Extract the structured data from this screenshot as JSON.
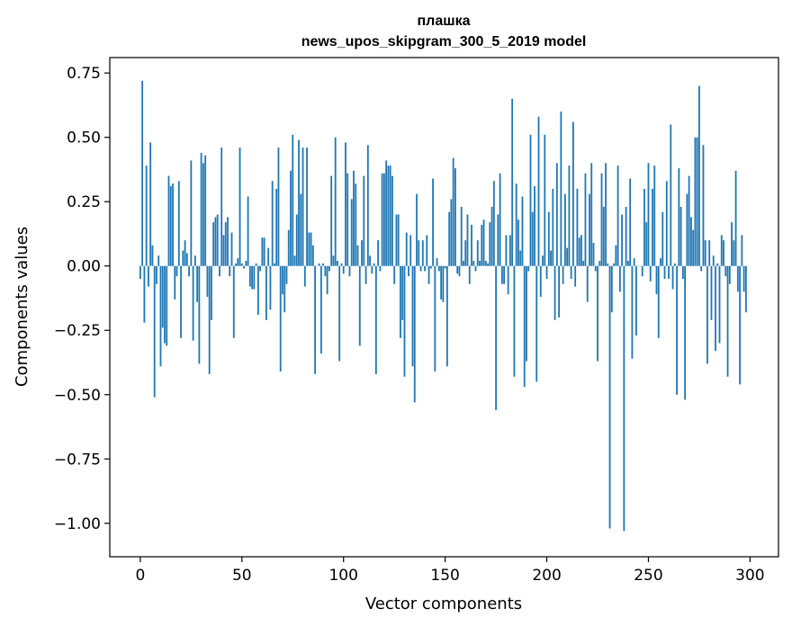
{
  "chart_data": {
    "type": "bar",
    "title": "плашка",
    "subtitle": "news_upos_skipgram_300_5_2019 model",
    "xlabel": "Vector components",
    "ylabel": "Components values",
    "xlim": [
      -15,
      314
    ],
    "ylim": [
      -1.13,
      0.81
    ],
    "xticks": [
      0,
      50,
      100,
      150,
      200,
      250,
      300
    ],
    "xtick_labels": [
      "0",
      "50",
      "100",
      "150",
      "200",
      "250",
      "300"
    ],
    "yticks": [
      0.75,
      0.5,
      0.25,
      0.0,
      -0.25,
      -0.5,
      -0.75,
      -1.0
    ],
    "ytick_labels": [
      "0.75",
      "0.50",
      "0.25",
      "0.00",
      "−0.25",
      "−0.50",
      "−0.75",
      "−1.00"
    ],
    "bar_color": "#1f77b4",
    "grid": false,
    "legend": "none",
    "values": [
      -0.05,
      0.72,
      -0.22,
      0.39,
      -0.08,
      0.48,
      0.08,
      -0.51,
      -0.07,
      0.04,
      -0.39,
      -0.24,
      -0.3,
      -0.31,
      0.35,
      0.31,
      0.32,
      -0.13,
      -0.04,
      0.33,
      -0.28,
      0.06,
      0.1,
      0.05,
      -0.04,
      0.41,
      -0.29,
      0.04,
      -0.14,
      -0.38,
      0.44,
      0.4,
      0.43,
      -0.12,
      -0.42,
      -0.21,
      0.17,
      0.19,
      0.2,
      -0.04,
      0.46,
      0.12,
      0.17,
      0.19,
      -0.04,
      0.13,
      -0.28,
      0.01,
      0.03,
      0.46,
      0.01,
      -0.01,
      0.02,
      0.27,
      -0.08,
      -0.09,
      -0.09,
      0.01,
      -0.19,
      -0.02,
      0.11,
      0.11,
      -0.21,
      0.07,
      -0.17,
      0.33,
      0.01,
      0.3,
      0.46,
      -0.41,
      -0.11,
      -0.18,
      -0.07,
      0.14,
      0.37,
      0.51,
      0.04,
      0.2,
      0.49,
      0.28,
      0.46,
      -0.08,
      0.46,
      0.13,
      0.13,
      0.08,
      -0.42,
      0.0,
      0.01,
      -0.34,
      0.01,
      -0.04,
      -0.11,
      -0.02,
      0.35,
      0.04,
      0.5,
      0.02,
      -0.37,
      0.01,
      -0.03,
      0.48,
      0.36,
      -0.04,
      0.26,
      0.37,
      0.32,
      0.08,
      -0.31,
      0.1,
      0.35,
      -0.07,
      0.47,
      0.04,
      -0.03,
      0.01,
      -0.42,
      0.1,
      -0.02,
      0.36,
      0.36,
      0.41,
      0.39,
      0.39,
      0.35,
      -0.07,
      0.2,
      0.2,
      -0.28,
      -0.21,
      -0.43,
      0.13,
      -0.04,
      0.12,
      -0.39,
      -0.53,
      0.28,
      0.1,
      -0.02,
      0.1,
      -0.02,
      0.12,
      -0.07,
      -0.01,
      0.34,
      -0.41,
      0.03,
      -0.02,
      -0.13,
      -0.14,
      -0.01,
      -0.39,
      0.21,
      0.26,
      0.42,
      0.38,
      -0.03,
      -0.04,
      0.23,
      0.02,
      0.1,
      0.2,
      -0.07,
      0.16,
      0.02,
      -0.02,
      0.1,
      0.02,
      0.16,
      0.18,
      0.02,
      0.01,
      0.17,
      0.23,
      0.33,
      -0.56,
      0.2,
      0.36,
      -0.07,
      -0.07,
      0.12,
      -0.11,
      0.12,
      0.65,
      -0.43,
      0.32,
      0.18,
      0.06,
      0.27,
      -0.47,
      -0.37,
      -0.02,
      0.51,
      0.21,
      0.31,
      -0.45,
      0.58,
      -0.12,
      0.04,
      0.51,
      -0.05,
      0.21,
      0.06,
      0.3,
      -0.21,
      0.4,
      -0.2,
      0.6,
      -0.07,
      0.28,
      0.07,
      0.39,
      -0.05,
      0.56,
      -0.08,
      0.3,
      0.11,
      0.12,
      0.02,
      0.36,
      -0.14,
      0.28,
      0.4,
      0.09,
      -0.02,
      -0.37,
      0.02,
      0.36,
      0.23,
      0.4,
      0.01,
      -1.02,
      -0.18,
      0.01,
      0.08,
      0.39,
      -0.1,
      0.2,
      -1.03,
      0.23,
      0.02,
      0.34,
      -0.36,
      0.03,
      -0.27,
      0.0,
      0.0,
      -0.04,
      0.3,
      0.17,
      0.4,
      -0.06,
      0.3,
      0.39,
      -0.11,
      -0.28,
      0.03,
      0.21,
      -0.05,
      0.33,
      -0.05,
      0.55,
      -0.09,
      0.01,
      -0.5,
      0.38,
      0.23,
      -0.05,
      -0.52,
      0.28,
      0.35,
      0.19,
      0.14,
      0.5,
      0.5,
      0.7,
      -0.02,
      0.47,
      0.1,
      -0.38,
      0.1,
      -0.21,
      0.04,
      -0.33,
      0.01,
      -0.3,
      0.12,
      0.1,
      -0.04,
      -0.43,
      -0.07,
      0.17,
      0.1,
      0.37,
      -0.1,
      -0.46,
      0.12,
      -0.1,
      -0.18
    ]
  }
}
